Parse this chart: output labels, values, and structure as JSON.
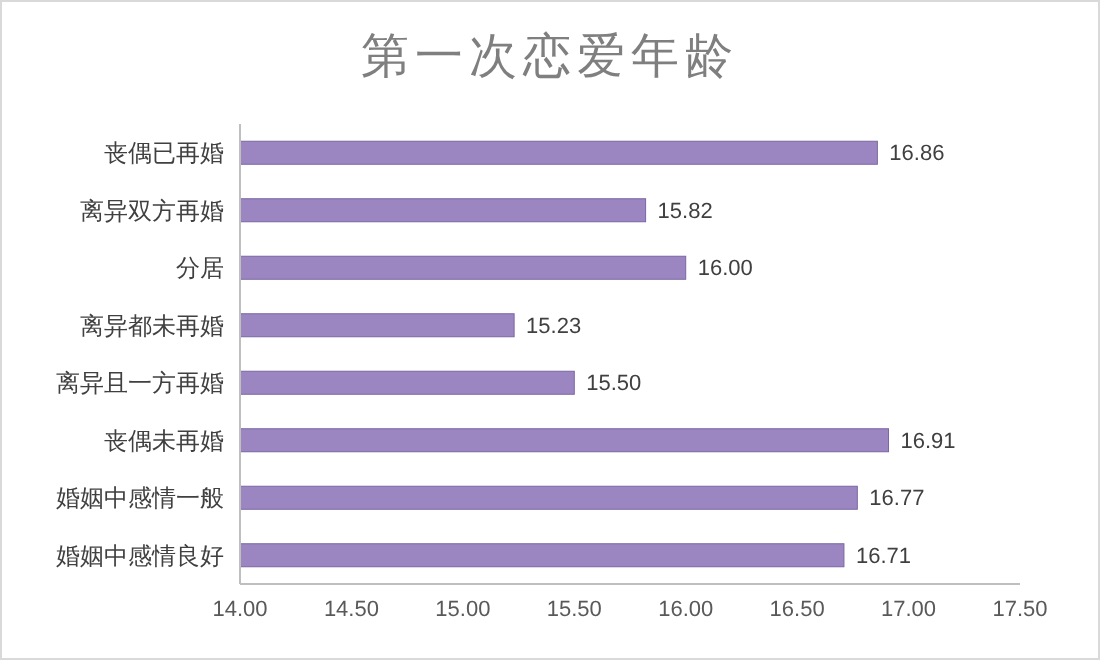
{
  "chart_data": {
    "type": "bar",
    "orientation": "horizontal",
    "title": "第一次恋爱年龄",
    "categories": [
      "丧偶已再婚",
      "离异双方再婚",
      "分居",
      "离异都未再婚",
      "离异且一方再婚",
      "丧偶未再婚",
      "婚姻中感情一般",
      "婚姻中感情良好"
    ],
    "values": [
      16.86,
      15.82,
      16.0,
      15.23,
      15.5,
      16.91,
      16.77,
      16.71
    ],
    "value_labels": [
      "16.86",
      "15.82",
      "16.00",
      "15.23",
      "15.50",
      "16.91",
      "16.77",
      "16.71"
    ],
    "color": "#9b86c2",
    "xlim": [
      14,
      17.5
    ],
    "xticks": [
      {
        "value": 14,
        "label": "14.00"
      },
      {
        "value": 14.5,
        "label": "14.50"
      },
      {
        "value": 15,
        "label": "15.00"
      },
      {
        "value": 15.5,
        "label": "15.50"
      },
      {
        "value": 16,
        "label": "16.00"
      },
      {
        "value": 16.5,
        "label": "16.50"
      },
      {
        "value": 17,
        "label": "17.00"
      },
      {
        "value": 17.5,
        "label": "17.50"
      }
    ]
  }
}
